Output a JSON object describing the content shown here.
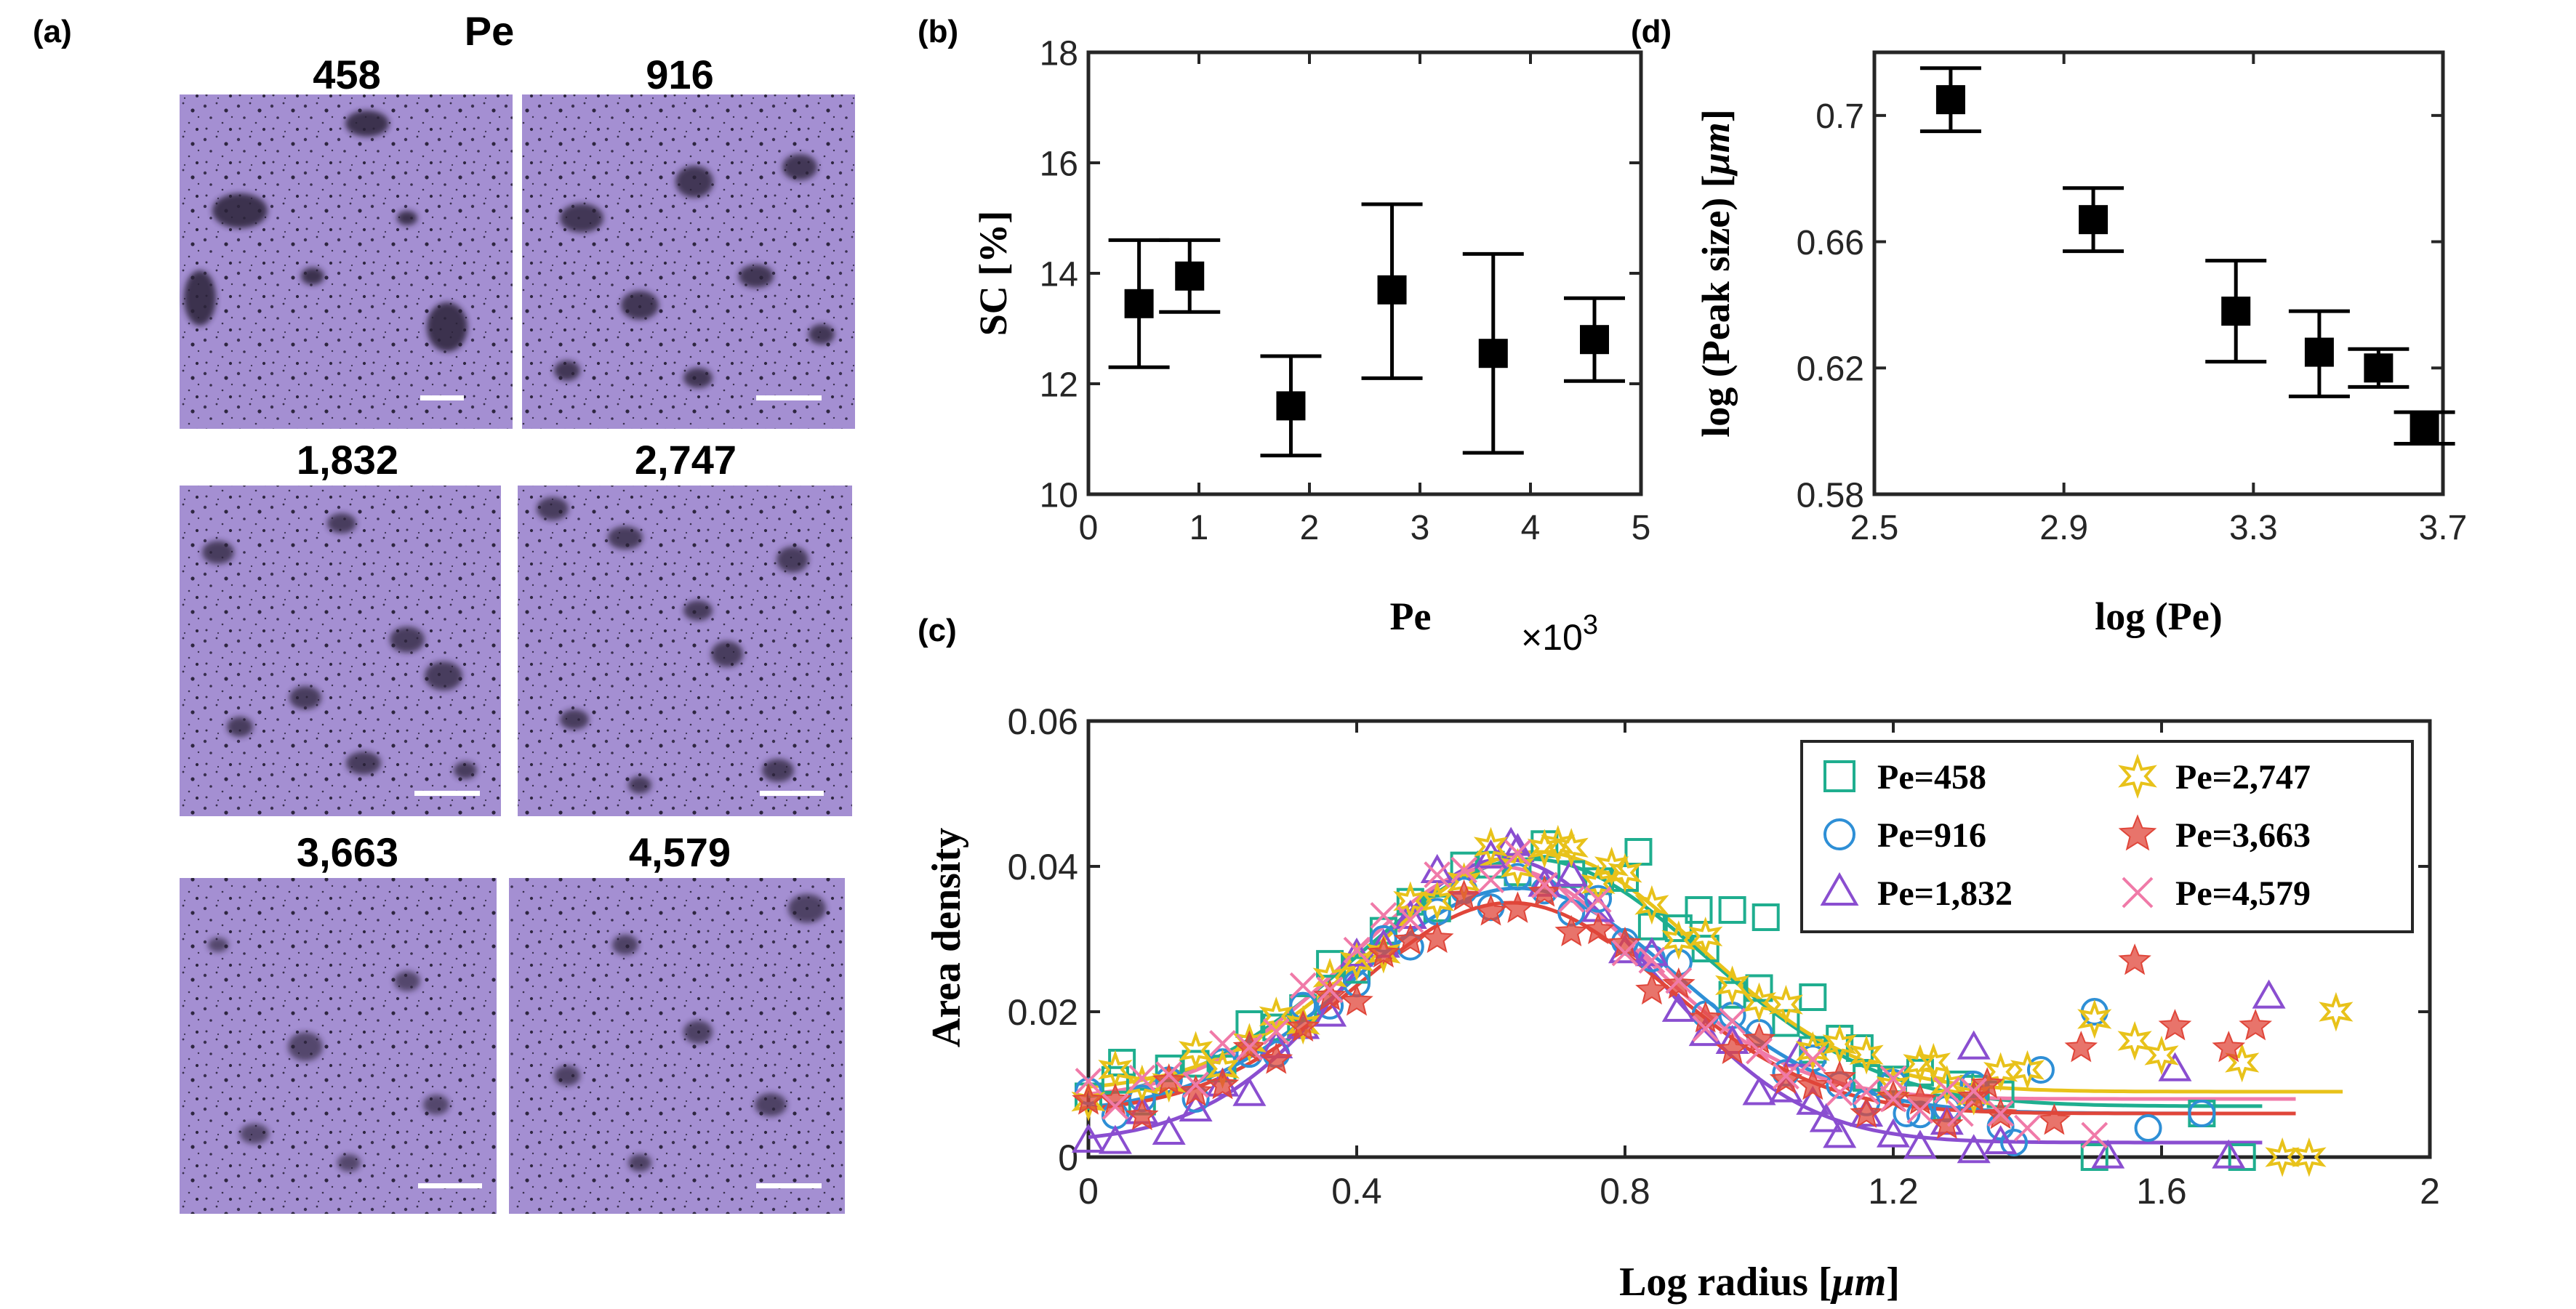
{
  "panel_a": {
    "label": "(a)",
    "header": "Pe",
    "images": [
      {
        "title": "458"
      },
      {
        "title": "916"
      },
      {
        "title": "1,832"
      },
      {
        "title": "2,747"
      },
      {
        "title": "3,663"
      },
      {
        "title": "4,579"
      }
    ],
    "colors": {
      "background": "#a48fd2",
      "particles": "#2e2640",
      "scalebar": "#ffffff"
    }
  },
  "chart_data": [
    {
      "id": "b",
      "panel_label": "(b)",
      "type": "scatter",
      "xlabel": "Pe",
      "x_exponent": "×10",
      "x_exponent_power": "3",
      "ylabel": "SC [%]",
      "xlim": [
        0,
        5
      ],
      "ylim": [
        10,
        18
      ],
      "xticks": [
        0,
        1,
        2,
        3,
        4,
        5
      ],
      "xtick_labels": [
        "0",
        "1",
        "2",
        "3",
        "4",
        "5"
      ],
      "yticks": [
        10,
        12,
        14,
        16,
        18
      ],
      "ytick_labels": [
        "10",
        "12",
        "14",
        "16",
        "18"
      ],
      "points": [
        {
          "x": 0.458,
          "y": 13.45,
          "low": 12.3,
          "high": 14.6
        },
        {
          "x": 0.916,
          "y": 13.95,
          "low": 13.3,
          "high": 14.6
        },
        {
          "x": 1.832,
          "y": 11.6,
          "low": 10.7,
          "high": 12.5
        },
        {
          "x": 2.747,
          "y": 13.7,
          "low": 12.1,
          "high": 15.25
        },
        {
          "x": 3.663,
          "y": 12.55,
          "low": 10.75,
          "high": 14.35
        },
        {
          "x": 4.579,
          "y": 12.8,
          "low": 12.05,
          "high": 13.55
        }
      ]
    },
    {
      "id": "d",
      "panel_label": "(d)",
      "type": "scatter",
      "xlabel": "log (Pe)",
      "ylabel_prefix": "log (Peak size) [",
      "ylabel_unit": "μm",
      "ylabel_suffix": "]",
      "xlim": [
        2.5,
        3.7
      ],
      "ylim": [
        0.58,
        0.72
      ],
      "xticks": [
        2.5,
        2.9,
        3.3,
        3.7
      ],
      "xtick_labels": [
        "2.5",
        "2.9",
        "3.3",
        "3.7"
      ],
      "yticks": [
        0.58,
        0.62,
        0.66,
        0.7
      ],
      "ytick_labels": [
        "0.58",
        "0.62",
        "0.66",
        "0.7"
      ],
      "points": [
        {
          "x": 2.661,
          "y": 0.705,
          "low": 0.695,
          "high": 0.715
        },
        {
          "x": 2.962,
          "y": 0.667,
          "low": 0.657,
          "high": 0.677
        },
        {
          "x": 3.263,
          "y": 0.638,
          "low": 0.622,
          "high": 0.654
        },
        {
          "x": 3.439,
          "y": 0.625,
          "low": 0.611,
          "high": 0.638
        },
        {
          "x": 3.564,
          "y": 0.62,
          "low": 0.614,
          "high": 0.626
        },
        {
          "x": 3.661,
          "y": 0.601,
          "low": 0.596,
          "high": 0.606
        }
      ]
    },
    {
      "id": "c",
      "panel_label": "(c)",
      "type": "scatter",
      "xlabel_prefix": "Log radius [",
      "xlabel_unit": "μm",
      "xlabel_suffix": "]",
      "ylabel": "Area density",
      "xlim": [
        0,
        2
      ],
      "ylim": [
        0,
        0.06
      ],
      "xticks": [
        0,
        0.4,
        0.8,
        1.2,
        1.6,
        2
      ],
      "xtick_labels": [
        "0",
        "0.4",
        "0.8",
        "1.2",
        "1.6",
        "2"
      ],
      "yticks": [
        0,
        0.02,
        0.04,
        0.06
      ],
      "ytick_labels": [
        "0",
        "0.02",
        "0.04",
        "0.06"
      ],
      "legend_position": "top-right",
      "series": [
        {
          "name": "Pe=458",
          "marker": "square",
          "color": "#1fae8f",
          "fit": {
            "a": 0.034,
            "mu": 0.66,
            "sigma": 0.26,
            "c": 0.007,
            "xmax": 1.75
          },
          "extra": [
            [
              0.05,
              0.013
            ],
            [
              0.82,
              0.042
            ],
            [
              0.91,
              0.034
            ],
            [
              0.96,
              0.034
            ],
            [
              1.01,
              0.033
            ],
            [
              1.08,
              0.022
            ],
            [
              1.15,
              0.015
            ],
            [
              1.3,
              0.01
            ],
            [
              1.5,
              0.0
            ],
            [
              1.66,
              0.006
            ],
            [
              1.72,
              0.0
            ]
          ]
        },
        {
          "name": "Pe=916",
          "marker": "circle",
          "color": "#2e8fd6",
          "fit": {
            "a": 0.031,
            "mu": 0.64,
            "sigma": 0.24,
            "c": 0.006,
            "xmax": 1.75
          },
          "extra": [
            [
              1.22,
              0.006
            ],
            [
              1.32,
              0.01
            ],
            [
              1.38,
              0.002
            ],
            [
              1.42,
              0.012
            ],
            [
              1.5,
              0.02
            ],
            [
              1.58,
              0.004
            ],
            [
              1.66,
              0.006
            ]
          ]
        },
        {
          "name": "Pe=1,832",
          "marker": "triangle",
          "color": "#8a4ed0",
          "fit": {
            "a": 0.039,
            "mu": 0.62,
            "sigma": 0.22,
            "c": 0.002,
            "xmax": 1.75
          },
          "extra": [
            [
              0.63,
              0.043
            ],
            [
              1.06,
              0.014
            ],
            [
              1.1,
              0.005
            ],
            [
              1.32,
              0.015
            ],
            [
              1.52,
              0.0
            ],
            [
              1.62,
              0.012
            ],
            [
              1.7,
              0.0
            ],
            [
              1.76,
              0.022
            ]
          ]
        },
        {
          "name": "Pe=2,747",
          "marker": "star6",
          "color": "#e8c21a",
          "fit": {
            "a": 0.033,
            "mu": 0.67,
            "sigma": 0.24,
            "c": 0.009,
            "xmax": 1.87
          },
          "extra": [
            [
              0.7,
              0.043
            ],
            [
              0.78,
              0.04
            ],
            [
              1.26,
              0.013
            ],
            [
              1.4,
              0.012
            ],
            [
              1.5,
              0.019
            ],
            [
              1.56,
              0.016
            ],
            [
              1.6,
              0.014
            ],
            [
              1.72,
              0.013
            ],
            [
              1.78,
              0.0
            ],
            [
              1.82,
              0.0
            ],
            [
              1.86,
              0.02
            ]
          ]
        },
        {
          "name": "Pe=3,663",
          "marker": "star5",
          "color": "#e0463a",
          "fit": {
            "a": 0.029,
            "mu": 0.63,
            "sigma": 0.23,
            "c": 0.006,
            "xmax": 1.8
          },
          "extra": [
            [
              1.34,
              0.01
            ],
            [
              1.44,
              0.005
            ],
            [
              1.48,
              0.015
            ],
            [
              1.56,
              0.027
            ],
            [
              1.62,
              0.018
            ],
            [
              1.7,
              0.015
            ],
            [
              1.74,
              0.018
            ]
          ]
        },
        {
          "name": "Pe=4,579",
          "marker": "x",
          "color": "#f07aa8",
          "fit": {
            "a": 0.032,
            "mu": 0.61,
            "sigma": 0.22,
            "c": 0.008,
            "xmax": 1.8
          },
          "extra": [
            [
              1.2,
              0.008
            ],
            [
              1.3,
              0.006
            ],
            [
              1.4,
              0.004
            ],
            [
              1.5,
              0.003
            ]
          ]
        }
      ]
    }
  ]
}
